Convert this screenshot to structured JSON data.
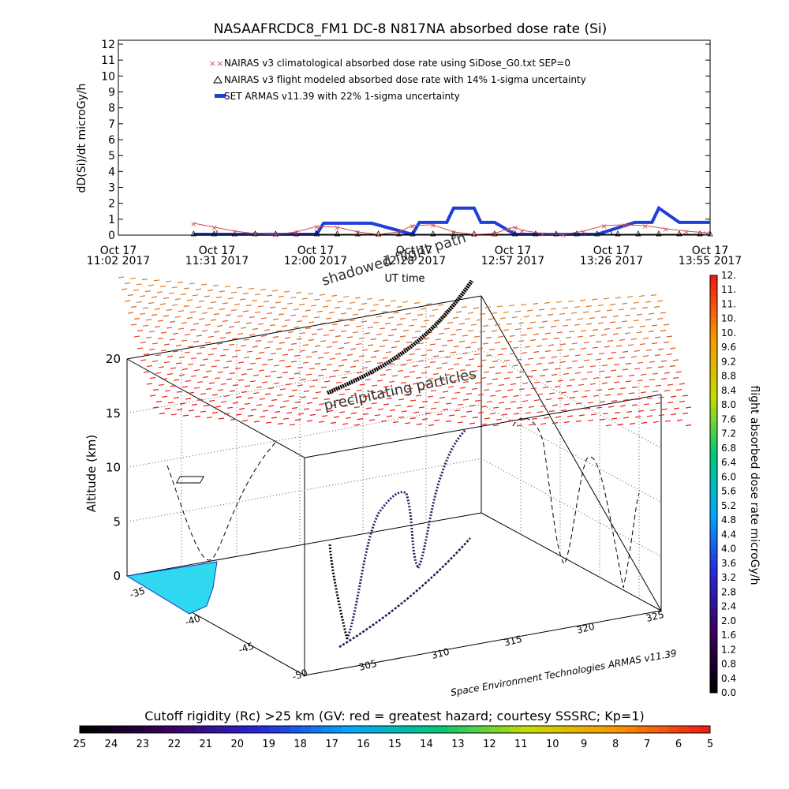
{
  "title": "NASAAFRCDC8_FM1 DC-8   N817NA absorbed dose rate (Si)",
  "credit": "Space Environment Technologies ARMAS v11.39",
  "colors": {
    "nairas_climatological": "#d05050",
    "nairas_flight": "#000000",
    "armas": "#1f3fd8"
  },
  "chart_data": [
    {
      "type": "line",
      "title": "NASAAFRCDC8_FM1 DC-8   N817NA absorbed dose rate (Si)",
      "ylabel": "dD(Si)/dt microGy/h",
      "xlabel": "UT time",
      "ylim": [
        0,
        12
      ],
      "yticks": [
        "0",
        "1",
        "2",
        "3",
        "4",
        "5",
        "6",
        "7",
        "8",
        "9",
        "10",
        "11",
        "12"
      ],
      "xticks": [
        {
          "line1": "Oct 17",
          "line2": "11:02 2017"
        },
        {
          "line1": "Oct 17",
          "line2": "11:31 2017"
        },
        {
          "line1": "Oct 17",
          "line2": "12:00 2017"
        },
        {
          "line1": "Oct 17",
          "line2": "12:28 2017"
        },
        {
          "line1": "Oct 17",
          "line2": "12:57 2017"
        },
        {
          "line1": "Oct 17",
          "line2": "13:26 2017"
        },
        {
          "line1": "Oct 17",
          "line2": "13:55 2017"
        }
      ],
      "x_minutes_range": [
        0,
        173
      ],
      "legend_position": "top",
      "legend": [
        "NAIRAS v3 climatological absorbed dose rate using SiDose_G0.txt SEP=0",
        "NAIRAS v3 flight modeled absorbed dose rate with 14% 1-sigma uncertainty",
        "SET ARMAS v11.39 with 22% 1-sigma uncertainty"
      ],
      "series": [
        {
          "name": "NAIRAS v3 climatological absorbed dose rate using SiDose_G0.txt SEP=0",
          "x_minutes": [
            22,
            28,
            34,
            40,
            46,
            52,
            58,
            64,
            70,
            76,
            82,
            86,
            92,
            98,
            104,
            110,
            114,
            116,
            118,
            124,
            130,
            136,
            142,
            148,
            154,
            160,
            166,
            172
          ],
          "values": [
            0.75,
            0.5,
            0.25,
            0.1,
            0.05,
            0.2,
            0.55,
            0.5,
            0.2,
            0.05,
            0.2,
            0.6,
            0.65,
            0.2,
            0.05,
            0.1,
            0.4,
            0.5,
            0.3,
            0.1,
            0.05,
            0.25,
            0.6,
            0.65,
            0.6,
            0.4,
            0.25,
            0.15
          ]
        },
        {
          "name": "NAIRAS v3 flight modeled absorbed dose rate with 14% 1-sigma uncertainty",
          "x_minutes": [
            22,
            28,
            34,
            40,
            46,
            52,
            58,
            64,
            70,
            76,
            82,
            86,
            92,
            98,
            104,
            110,
            116,
            122,
            128,
            134,
            140,
            146,
            152,
            158,
            164,
            170,
            173
          ],
          "values": [
            0.05,
            0.05,
            0.05,
            0.05,
            0.05,
            0.05,
            0.05,
            0.05,
            0.05,
            0.05,
            0.05,
            0.05,
            0.05,
            0.05,
            0.05,
            0.05,
            0.05,
            0.05,
            0.05,
            0.05,
            0.05,
            0.05,
            0.05,
            0.05,
            0.05,
            0.05,
            0.05
          ]
        },
        {
          "name": "SET ARMAS v11.39 with 22% 1-sigma uncertainty",
          "x_minutes": [
            22,
            40,
            58,
            60,
            72,
            74,
            86,
            88,
            96,
            98,
            104,
            106,
            110,
            116,
            128,
            140,
            151,
            156,
            158,
            164,
            173
          ],
          "values": [
            0.05,
            0.05,
            0.05,
            0.75,
            0.75,
            0.75,
            0.05,
            0.8,
            0.8,
            1.7,
            1.7,
            0.8,
            0.8,
            0.05,
            0.05,
            0.05,
            0.8,
            0.8,
            1.7,
            0.8,
            0.8
          ]
        }
      ]
    },
    {
      "type": "scatter",
      "title": "",
      "zlabel": "Altitude (km)",
      "zticks": [
        "0",
        "5",
        "10",
        "15",
        "20"
      ],
      "zlim": [
        0,
        20
      ],
      "latitude_ticks": [
        "-35",
        "-40",
        "-45",
        "-50"
      ],
      "longitude_ticks": [
        "305",
        "310",
        "315",
        "320",
        "325"
      ],
      "annotations": [
        "shadowed flight path",
        "precipitating particles"
      ],
      "flight_dose_colorbar": {
        "label": "flight absorbed dose rate microGy/h",
        "ticks": [
          "0.0",
          "0.4",
          "0.8",
          "1.2",
          "1.6",
          "2.0",
          "2.4",
          "2.8",
          "3.2",
          "3.6",
          "4.0",
          "4.4",
          "4.8",
          "5.2",
          "5.6",
          "6.0",
          "6.4",
          "6.8",
          "7.2",
          "7.6",
          "8.0",
          "8.4",
          "8.8",
          "9.2",
          "9.6",
          "10.",
          "10.",
          "11.",
          "11.",
          "12."
        ]
      },
      "rigidity_colorbar": {
        "label": "Cutoff rigidity (Rc) >25 km (GV: red = greatest hazard; courtesy SSSRC; Kp=1)",
        "ticks": [
          "25",
          "24",
          "23",
          "22",
          "21",
          "20",
          "19",
          "18",
          "17",
          "16",
          "15",
          "14",
          "13",
          "12",
          "11",
          "10",
          "9",
          "8",
          "7",
          "6",
          "5"
        ]
      }
    }
  ]
}
